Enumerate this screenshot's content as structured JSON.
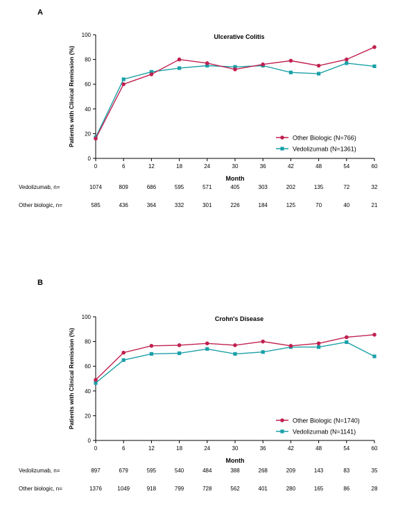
{
  "colors": {
    "other_biologic": "#c0204f",
    "vedolizumab": "#1aa0a8",
    "axis": "#000000"
  },
  "chart_data": [
    {
      "panel_label": "A",
      "type": "line",
      "title": "Ulcerative Colitis",
      "xlabel": "Month",
      "ylabel": "Patients with Clinical Remission (%)",
      "x": [
        0,
        6,
        12,
        18,
        24,
        30,
        36,
        42,
        48,
        54,
        60
      ],
      "xlim": [
        0,
        60
      ],
      "ylim": [
        0,
        100
      ],
      "yticks": [
        0,
        20,
        40,
        60,
        80,
        100
      ],
      "legend_position": "bottom-right",
      "series": [
        {
          "name": "Other Biologic (N=766)",
          "color": "#c0204f",
          "marker": "circle",
          "values": [
            16,
            60,
            68,
            80,
            77,
            72,
            76,
            79,
            75,
            80,
            90
          ]
        },
        {
          "name": "Vedolizumab (N=1361)",
          "color": "#1aa0a8",
          "marker": "square",
          "values": [
            17,
            64,
            70,
            73,
            75,
            74,
            75,
            69.5,
            68.5,
            77,
            74.5
          ]
        }
      ],
      "risk_table": [
        {
          "label": "Vedolizumab, n=",
          "values": [
            "1074",
            "809",
            "686",
            "595",
            "571",
            "405",
            "303",
            "202",
            "135",
            "72",
            "32"
          ]
        },
        {
          "label": "Other biologic, n=",
          "values": [
            "585",
            "436",
            "364",
            "332",
            "301",
            "226",
            "184",
            "125",
            "70",
            "40",
            "21"
          ]
        }
      ]
    },
    {
      "panel_label": "B",
      "type": "line",
      "title": "Crohn's Disease",
      "xlabel": "Month",
      "ylabel": "Patients with Clinical Remission (%)",
      "x": [
        0,
        6,
        12,
        18,
        24,
        30,
        36,
        42,
        48,
        54,
        60
      ],
      "xlim": [
        0,
        60
      ],
      "ylim": [
        0,
        100
      ],
      "yticks": [
        0,
        20,
        40,
        60,
        80,
        100
      ],
      "legend_position": "bottom-right",
      "series": [
        {
          "name": "Other Biologic (N=1740)",
          "color": "#c0204f",
          "marker": "circle",
          "values": [
            49,
            71,
            76.5,
            77,
            78.5,
            77,
            80,
            76.5,
            78.5,
            83.5,
            85.5
          ]
        },
        {
          "name": "Vedolizumab (N=1141)",
          "color": "#1aa0a8",
          "marker": "square",
          "values": [
            46.5,
            65,
            70,
            70.5,
            74,
            70,
            71.5,
            75.5,
            75.5,
            79.5,
            68
          ]
        }
      ],
      "risk_table": [
        {
          "label": "Vedolizumab, n=",
          "values": [
            "897",
            "679",
            "595",
            "540",
            "484",
            "388",
            "268",
            "209",
            "143",
            "83",
            "35"
          ]
        },
        {
          "label": "Other biologic, n=",
          "values": [
            "1376",
            "1049",
            "918",
            "799",
            "728",
            "562",
            "401",
            "280",
            "165",
            "86",
            "28"
          ]
        }
      ]
    }
  ]
}
